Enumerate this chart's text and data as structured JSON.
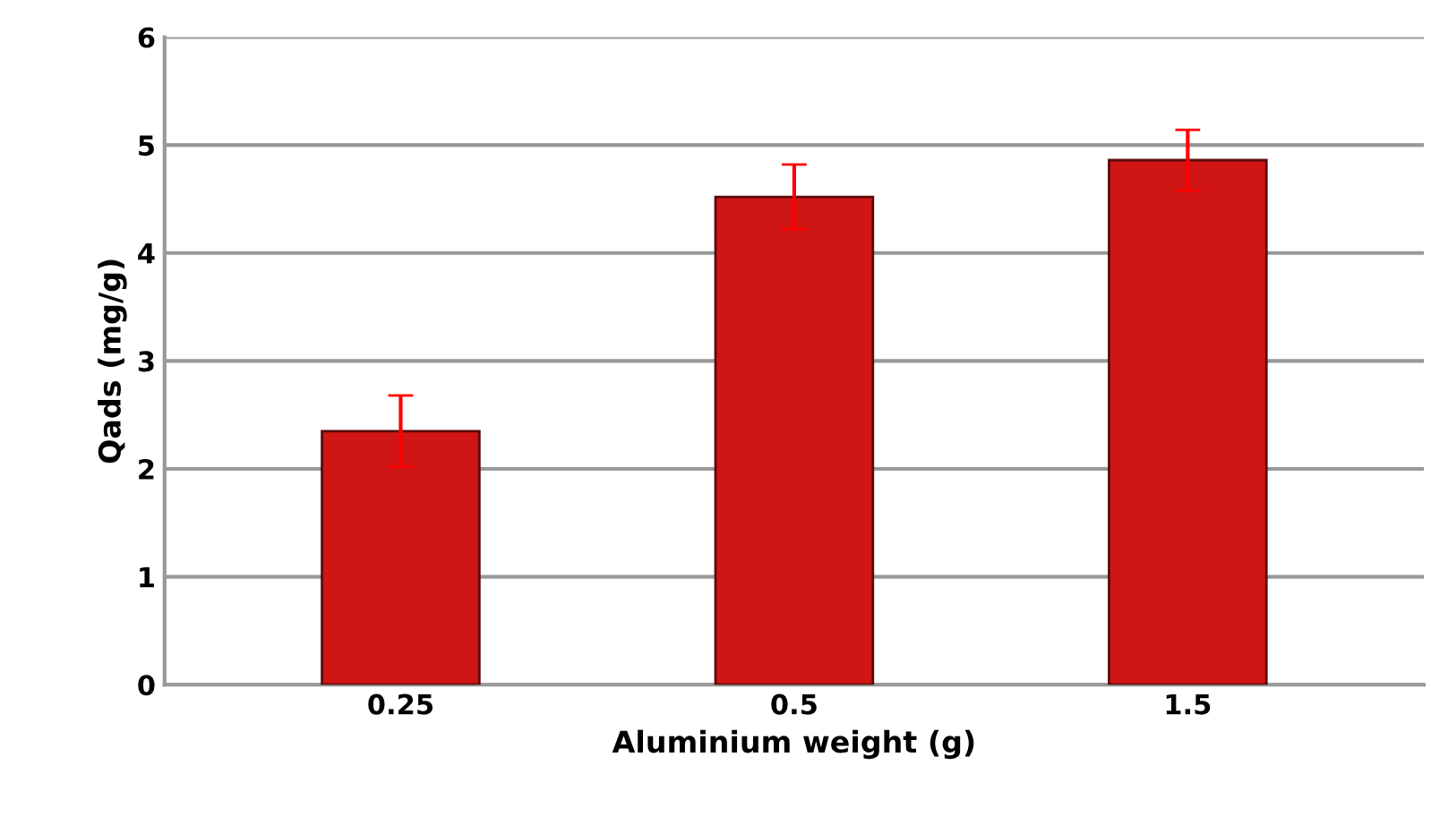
{
  "chart_data": {
    "type": "bar",
    "xlabel": "Aluminium weight (g)",
    "ylabel": "Qads (mg/g)",
    "categories": [
      "0.25",
      "0.5",
      "1.5"
    ],
    "values": [
      2.35,
      4.52,
      4.86
    ],
    "errors": [
      0.33,
      0.3,
      0.28
    ],
    "color": "#d01515",
    "ylim": [
      0,
      6
    ],
    "yticks": [
      0,
      1,
      2,
      3,
      4,
      5,
      6
    ],
    "grid": "y",
    "legend": false
  }
}
